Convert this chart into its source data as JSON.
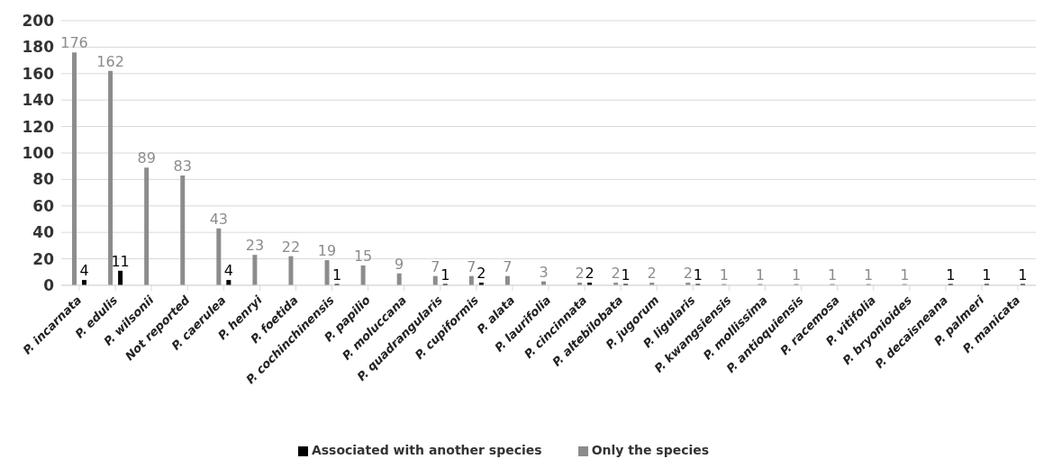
{
  "chart_data": {
    "type": "bar",
    "categories": [
      "P. incarnata",
      "P. edulis",
      "P. wilsonii",
      "Not reported",
      "P. caerulea",
      "P. henryi",
      "P. foetida",
      "P. cochinchinensis",
      "P. papilio",
      "P. moluccana",
      "P. quadrangularis",
      "P. cupiformis",
      "P. alata",
      "P. laurifolia",
      "P. cincinnata",
      "P. altebilobata",
      "P. jugorum",
      "P. ligularis",
      "P. kwangsiensis",
      "P. mollissima",
      "P. antioquiensis",
      "P. racemosa",
      "P. vitifolia",
      "P. bryonioides",
      "P. decaisneana",
      "P. palmeri",
      "P. manicata"
    ],
    "series": [
      {
        "name": "Only the species",
        "color": "#8c8c8c",
        "values": [
          176,
          162,
          89,
          83,
          43,
          23,
          22,
          19,
          15,
          9,
          7,
          7,
          7,
          3,
          2,
          2,
          2,
          2,
          1,
          1,
          1,
          1,
          1,
          1,
          null,
          null,
          null
        ]
      },
      {
        "name": "Associated with another species",
        "color": "#000000",
        "values": [
          4,
          11,
          null,
          null,
          4,
          null,
          null,
          1,
          null,
          null,
          1,
          2,
          null,
          null,
          2,
          1,
          null,
          1,
          null,
          null,
          null,
          null,
          null,
          null,
          1,
          1,
          1
        ]
      }
    ],
    "ylim": [
      0,
      200
    ],
    "yticks": [
      0,
      20,
      40,
      60,
      80,
      100,
      120,
      140,
      160,
      180,
      200
    ],
    "grid": "y",
    "legend": "bottom",
    "data_labels": true
  }
}
